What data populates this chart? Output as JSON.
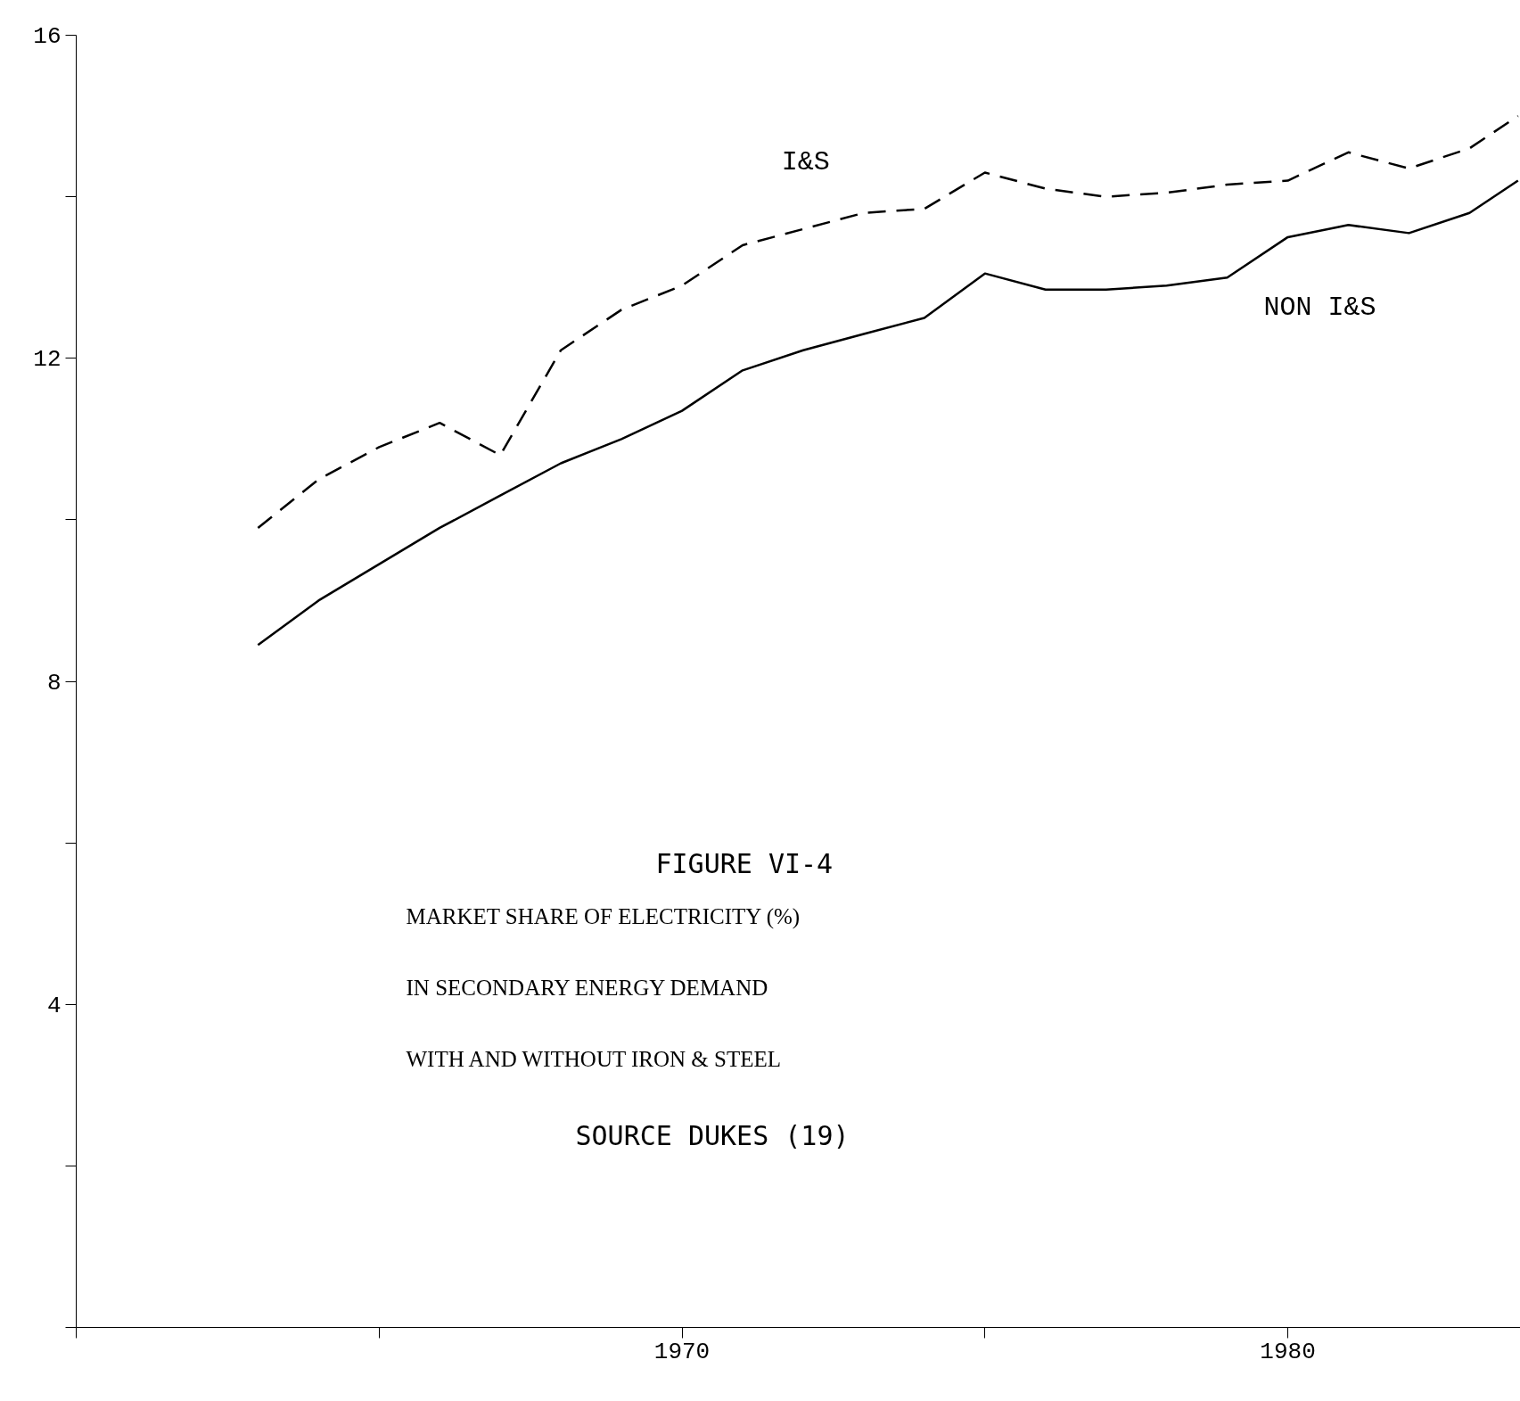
{
  "chart_data": {
    "type": "line",
    "title": "FIGURE VI-4",
    "annotations": [
      "MARKET SHARE OF ELECTRICITY (%)",
      "IN SECONDARY ENERGY DEMAND",
      "WITH AND WITHOUT IRON & STEEL",
      "SOURCE DUKES (19)"
    ],
    "x": [
      1963,
      1964,
      1965,
      1966,
      1967,
      1968,
      1969,
      1970,
      1971,
      1972,
      1973,
      1974,
      1975,
      1976,
      1977,
      1978,
      1979,
      1980,
      1981,
      1982,
      1983,
      1983.8
    ],
    "series": [
      {
        "name": "I&S",
        "color": "#000000",
        "line_style": "dashed",
        "values": [
          9.9,
          10.5,
          10.9,
          11.2,
          10.8,
          12.1,
          12.6,
          12.9,
          13.4,
          13.6,
          13.8,
          13.85,
          14.3,
          14.1,
          14.0,
          14.05,
          14.15,
          14.2,
          14.55,
          14.35,
          14.6,
          15.0
        ]
      },
      {
        "name": "NON I&S",
        "color": "#000000",
        "line_style": "solid",
        "values": [
          8.45,
          9.0,
          9.45,
          9.9,
          10.3,
          10.7,
          11.0,
          11.35,
          11.85,
          12.1,
          12.3,
          12.5,
          13.05,
          12.85,
          12.85,
          12.9,
          13.0,
          13.5,
          13.65,
          13.55,
          13.8,
          14.2
        ]
      }
    ],
    "xlim": [
      1960,
      1983.84
    ],
    "ylim": [
      0,
      16
    ],
    "xticks": [
      {
        "value": 1960,
        "label": null
      },
      {
        "value": 1965,
        "label": null
      },
      1970,
      {
        "value": 1975,
        "label": null
      },
      1980
    ],
    "yticks": [
      {
        "value": 0,
        "label": null
      },
      {
        "value": 2,
        "label": null
      },
      4,
      {
        "value": 6,
        "label": null
      },
      8,
      {
        "value": 10,
        "label": null
      },
      12,
      {
        "value": 14,
        "label": null
      },
      16
    ],
    "grid": false
  }
}
